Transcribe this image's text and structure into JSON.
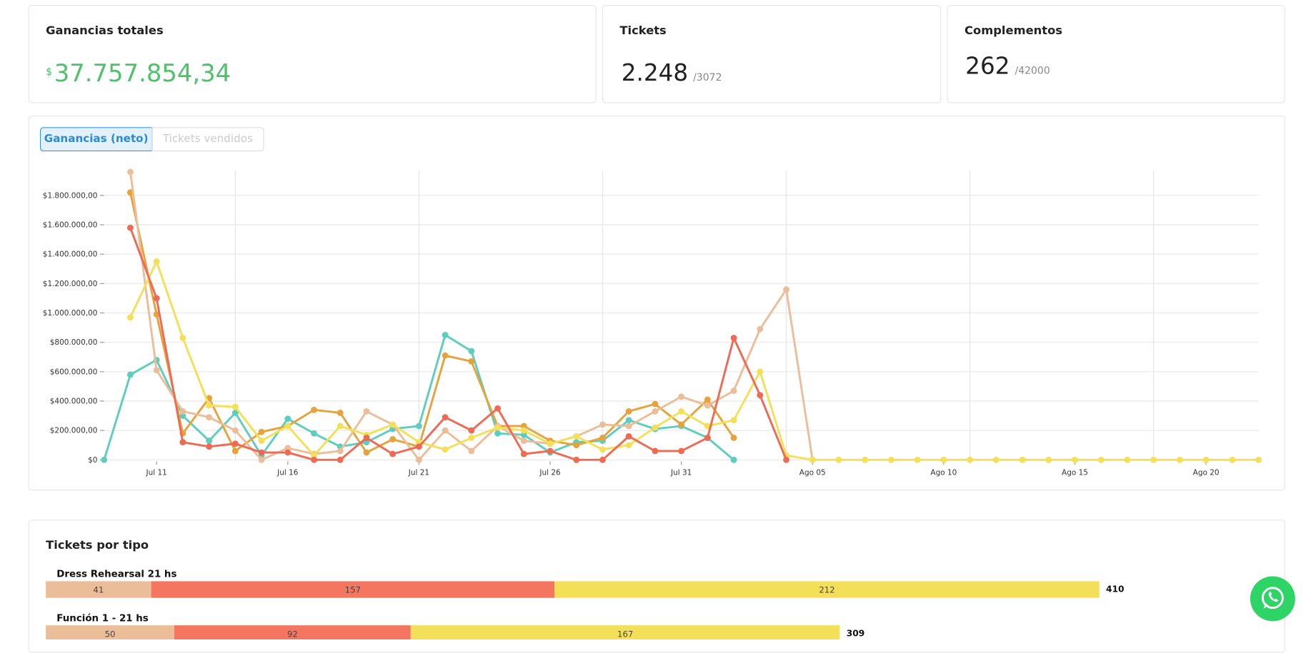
{
  "cards": [
    {
      "title": "Ganancias totales",
      "currency": "$",
      "value": "37.757.854,34"
    },
    {
      "title": "Tickets",
      "value": "2.248",
      "limit": "/3072"
    },
    {
      "title": "Complementos",
      "value": "262",
      "limit": "/42000"
    }
  ],
  "tabs": [
    "Ganancias (neto)",
    "Tickets vendidos"
  ],
  "chart_data": [
    {
      "type": "line",
      "categories": [
        null,
        null,
        "Jul 11",
        null,
        null,
        null,
        null,
        "Jul 16",
        null,
        null,
        null,
        null,
        "Jul 21",
        null,
        null,
        null,
        null,
        "Jul 26",
        null,
        null,
        null,
        null,
        "Jul 31",
        null,
        null,
        null,
        null,
        "Ago 05",
        null,
        null,
        null,
        null,
        "Ago 10",
        null,
        null,
        null,
        null,
        "Ago 15",
        null,
        null,
        null,
        null,
        "Ago 20",
        null,
        null
      ],
      "ylim": [
        0,
        1970000
      ],
      "yticks": [
        {
          "value": 0,
          "label": "$0"
        },
        {
          "value": 200000,
          "label": "$200.000,00"
        },
        {
          "value": 400000,
          "label": "$400.000,00"
        },
        {
          "value": 600000,
          "label": "$600.000,00"
        },
        {
          "value": 800000,
          "label": "$800.000,00"
        },
        {
          "value": 1000000,
          "label": "$1.000.000,00"
        },
        {
          "value": 1200000,
          "label": "$1.200.000,00"
        },
        {
          "value": 1400000,
          "label": "$1.400.000,00"
        },
        {
          "value": 1600000,
          "label": "$1.600.000,00"
        },
        {
          "value": 1800000,
          "label": "$1.800.000,00"
        }
      ],
      "grid": true,
      "series": [
        {
          "color": "#5fcdbd",
          "values": [
            0,
            580000,
            680000,
            300000,
            130000,
            320000,
            30000,
            280000,
            180000,
            90000,
            120000,
            210000,
            230000,
            850000,
            740000,
            180000,
            170000,
            50000,
            120000,
            130000,
            270000,
            210000,
            230000,
            150000,
            0,
            null,
            null,
            null,
            null,
            null,
            null,
            null,
            null,
            null,
            null,
            null,
            null,
            null,
            null,
            null,
            null,
            null,
            null,
            null,
            null
          ]
        },
        {
          "color": "#e6a33c",
          "values": [
            null,
            1820000,
            990000,
            180000,
            420000,
            60000,
            190000,
            230000,
            340000,
            320000,
            50000,
            140000,
            90000,
            710000,
            670000,
            230000,
            230000,
            130000,
            100000,
            150000,
            330000,
            380000,
            240000,
            410000,
            150000,
            null,
            null,
            null,
            null,
            null,
            null,
            null,
            null,
            null,
            null,
            null,
            null,
            null,
            null,
            null,
            null,
            null,
            null,
            null,
            null
          ]
        },
        {
          "color": "#ebbd98",
          "values": [
            null,
            1960000,
            610000,
            330000,
            290000,
            200000,
            0,
            80000,
            40000,
            60000,
            330000,
            240000,
            0,
            200000,
            60000,
            230000,
            130000,
            110000,
            160000,
            240000,
            230000,
            330000,
            430000,
            370000,
            470000,
            890000,
            1160000,
            0,
            null,
            null,
            null,
            null,
            null,
            null,
            null,
            null,
            null,
            null,
            null,
            null,
            null,
            null,
            null,
            null,
            null
          ]
        },
        {
          "color": "#f3df58",
          "values": [
            null,
            970000,
            1350000,
            830000,
            370000,
            360000,
            130000,
            230000,
            30000,
            230000,
            170000,
            240000,
            120000,
            70000,
            150000,
            220000,
            200000,
            110000,
            160000,
            70000,
            100000,
            220000,
            330000,
            230000,
            270000,
            600000,
            30000,
            0,
            0,
            0,
            0,
            0,
            0,
            0,
            0,
            0,
            0,
            0,
            0,
            0,
            0,
            0,
            0,
            0,
            0
          ]
        },
        {
          "color": "#ef6a55",
          "values": [
            null,
            1580000,
            1100000,
            120000,
            90000,
            110000,
            50000,
            50000,
            0,
            0,
            150000,
            40000,
            90000,
            290000,
            200000,
            350000,
            40000,
            60000,
            0,
            0,
            160000,
            60000,
            60000,
            150000,
            830000,
            440000,
            0,
            null,
            null,
            null,
            null,
            null,
            null,
            null,
            null,
            null,
            null,
            null,
            null,
            null,
            null,
            null,
            null,
            null,
            null
          ]
        }
      ]
    },
    {
      "type": "bar",
      "title": "Tickets por tipo",
      "orientation": "horizontal",
      "stacked": true,
      "categories": [
        "Dress Rehearsal 21 hs",
        "Función 1 - 21 hs"
      ],
      "series": [
        {
          "color": "#ebbd98",
          "values": [
            41,
            50
          ]
        },
        {
          "color": "#f47660",
          "values": [
            157,
            92
          ]
        },
        {
          "color": "#f3df58",
          "values": [
            212,
            167
          ]
        }
      ],
      "totals": [
        410,
        309
      ]
    }
  ]
}
